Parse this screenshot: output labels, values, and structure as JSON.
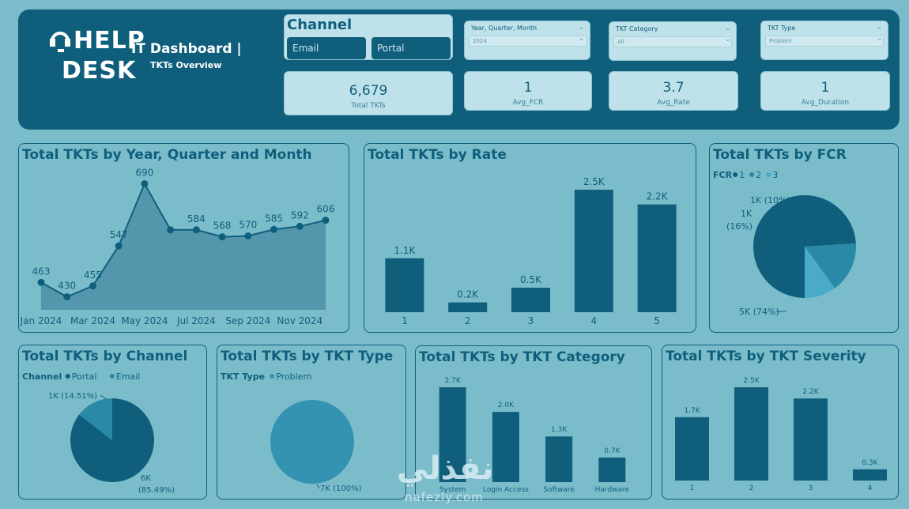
{
  "header": {
    "logo_help": "HELP",
    "logo_desk": "DESK",
    "title": "IT Dashboard |",
    "subtitle": "TKTs Overview"
  },
  "channel_slicer": {
    "title": "Channel",
    "options": [
      "Email",
      "Portal"
    ]
  },
  "filters": [
    {
      "label": "Year, Quarter, Month",
      "value": "2024"
    },
    {
      "label": "TKT Category",
      "value": "All"
    },
    {
      "label": "TKT Type",
      "value": "Problem"
    }
  ],
  "kpis": [
    {
      "value": "6,679",
      "label": "Total TKTs"
    },
    {
      "value": "1",
      "label": "Avg_FCR"
    },
    {
      "value": "3.7",
      "label": "Avg_Rate"
    },
    {
      "value": "1",
      "label": "Avg_Duration"
    }
  ],
  "colors": {
    "primary": "#0f5f7c",
    "mid": "#2a89a6",
    "light": "#49abc8",
    "background": "#7bbccb",
    "pie_single": "#3493b0"
  },
  "chart_data": [
    {
      "id": "month",
      "type": "area",
      "title": "Total TKTs by Year, Quarter and Month",
      "x": [
        "Jan 2024",
        "Feb 2024",
        "Mar 2024",
        "Apr 2024",
        "May 2024",
        "Jun 2024",
        "Jul 2024",
        "Aug 2024",
        "Sep 2024",
        "Oct 2024",
        "Nov 2024",
        "Dec 2024"
      ],
      "x_tick_labels": [
        "Jan 2024",
        "Mar 2024",
        "May 2024",
        "Jul 2024",
        "Sep 2024",
        "Nov 2024"
      ],
      "values": [
        463,
        430,
        455,
        547,
        690,
        584,
        584,
        568,
        570,
        585,
        592,
        606
      ],
      "value_labels": [
        "463",
        "430",
        "455",
        "547",
        "690",
        "",
        "584",
        "568",
        "570",
        "585",
        "592",
        "606"
      ],
      "ylim": [
        400,
        720
      ]
    },
    {
      "id": "rate",
      "type": "bar",
      "title": "Total TKTs by Rate",
      "categories": [
        "1",
        "2",
        "3",
        "4",
        "5"
      ],
      "values": [
        1100,
        200,
        500,
        2500,
        2200
      ],
      "value_labels": [
        "1.1K",
        "0.2K",
        "0.5K",
        "2.5K",
        "2.2K"
      ],
      "ylim": [
        0,
        2500
      ]
    },
    {
      "id": "fcr",
      "type": "pie",
      "title": "Total TKTs by FCR",
      "legend_title": "FCR",
      "legend": [
        "1",
        "2",
        "3"
      ],
      "values": [
        74,
        16,
        10
      ],
      "slice_labels": [
        "5K (74%)",
        "1K (16%)",
        "1K (10%)"
      ]
    },
    {
      "id": "channel",
      "type": "pie",
      "title": "Total TKTs by Channel",
      "legend_title": "Channel",
      "legend": [
        "Portal",
        "Email"
      ],
      "values": [
        85.49,
        14.51
      ],
      "slice_labels": [
        "6K (85.49%)",
        "1K (14.51%)"
      ]
    },
    {
      "id": "tkttype",
      "type": "pie",
      "title": "Total TKTs by TKT Type",
      "legend_title": "TKT Type",
      "legend": [
        "Problem"
      ],
      "values": [
        100
      ],
      "slice_labels": [
        "7K (100%)"
      ]
    },
    {
      "id": "category",
      "type": "bar",
      "title": "Total TKTs by TKT Category",
      "categories": [
        "System",
        "Login Access",
        "Software",
        "Hardware"
      ],
      "values": [
        2700,
        2000,
        1300,
        700
      ],
      "value_labels": [
        "2.7K",
        "2.0K",
        "1.3K",
        "0.7K"
      ],
      "ylim": [
        0,
        2700
      ]
    },
    {
      "id": "severity",
      "type": "bar",
      "title": "Total TKTs by TKT Severity",
      "categories": [
        "1",
        "2",
        "3",
        "4"
      ],
      "values": [
        1700,
        2500,
        2200,
        300
      ],
      "value_labels": [
        "1.7K",
        "2.5K",
        "2.2K",
        "0.3K"
      ],
      "ylim": [
        0,
        2500
      ]
    }
  ],
  "watermark": {
    "arabic": "نفذلي",
    "latin": "nafezly.com"
  }
}
